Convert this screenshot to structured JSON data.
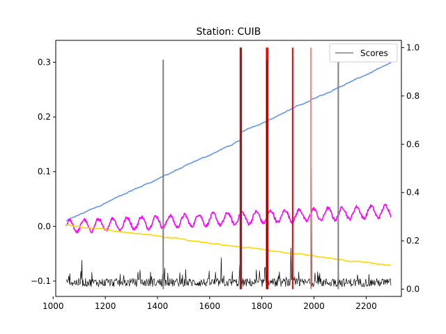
{
  "chart_data": {
    "type": "line",
    "title": "Station: CUIB",
    "xlabel": "",
    "ylabel_left": "",
    "ylabel_right": "",
    "xlim": [
      1010,
      2335
    ],
    "ylim_left": [
      -0.128,
      0.34
    ],
    "ylim_right": [
      -0.03,
      1.03
    ],
    "x_ticks": [
      1000,
      1200,
      1400,
      1600,
      1800,
      2000,
      2200
    ],
    "x_tick_labels": [
      "1000",
      "1200",
      "1400",
      "1600",
      "1800",
      "2000",
      "2200"
    ],
    "y_left_ticks": [
      -0.1,
      0.0,
      0.1,
      0.2,
      0.3
    ],
    "y_left_tick_labels": [
      "−0.1",
      "0.0",
      "0.1",
      "0.2",
      "0.3"
    ],
    "y_right_ticks": [
      0.0,
      0.2,
      0.4,
      0.6,
      0.8,
      1.0
    ],
    "y_right_tick_labels": [
      "0.0",
      "0.2",
      "0.4",
      "0.6",
      "0.8",
      "1.0"
    ],
    "grid": false,
    "legend": {
      "placement": "top-right",
      "entries": [
        "Scores"
      ]
    },
    "series": [
      {
        "color": "#6495ED",
        "axis": "left",
        "shape": "trend",
        "x_range": [
          1050,
          2295
        ],
        "y_start": 0.01,
        "y_end": 0.283,
        "steps": [
          {
            "x": 1718,
            "dy": 0.015
          }
        ]
      },
      {
        "color": "#FF00FF",
        "axis": "left",
        "shape": "periodic",
        "x_range": [
          1050,
          2295
        ],
        "y_start": 0.0,
        "y_end": 0.028,
        "amplitude": 0.011,
        "period": 55
      },
      {
        "color": "#FFD700",
        "axis": "left",
        "shape": "trend",
        "x_range": [
          1050,
          2295
        ],
        "y_start": 0.003,
        "y_end": -0.072,
        "steps": []
      },
      {
        "name": "Scores",
        "color": "#000000",
        "axis": "right",
        "shape": "noise",
        "x_range": [
          1050,
          2295
        ],
        "baseline": 0.01,
        "peaks": [
          [
            1110,
            0.12
          ],
          [
            1148,
            0.07
          ],
          [
            1420,
            0.05
          ],
          [
            1645,
            0.13
          ],
          [
            1715,
            0.1
          ],
          [
            1812,
            0.09
          ],
          [
            1820,
            0.55
          ],
          [
            1912,
            0.17
          ],
          [
            1918,
            0.24
          ],
          [
            1990,
            0.5
          ],
          [
            2093,
            0.06
          ]
        ]
      }
    ],
    "vertical_lines": [
      {
        "x": 1422,
        "color": "#7f7f7f",
        "height": 0.95
      },
      {
        "x": 1717,
        "color": "#7f7f7f",
        "height": 1.0
      },
      {
        "x": 1720,
        "color": "#FF0000",
        "height": 1.0
      },
      {
        "x": 1720,
        "color": "#8B0000",
        "height": 1.0
      },
      {
        "x": 1818,
        "color": "#FF0000",
        "height": 1.0
      },
      {
        "x": 1822,
        "color": "#FF0000",
        "height": 1.0
      },
      {
        "x": 1820,
        "color": "#8B0000",
        "height": 0.95
      },
      {
        "x": 1918,
        "color": "#FF0000",
        "height": 1.0
      },
      {
        "x": 1988,
        "color": "#FF8080",
        "height": 1.0
      },
      {
        "x": 2093,
        "color": "#7f7f7f",
        "height": 0.95
      }
    ]
  }
}
